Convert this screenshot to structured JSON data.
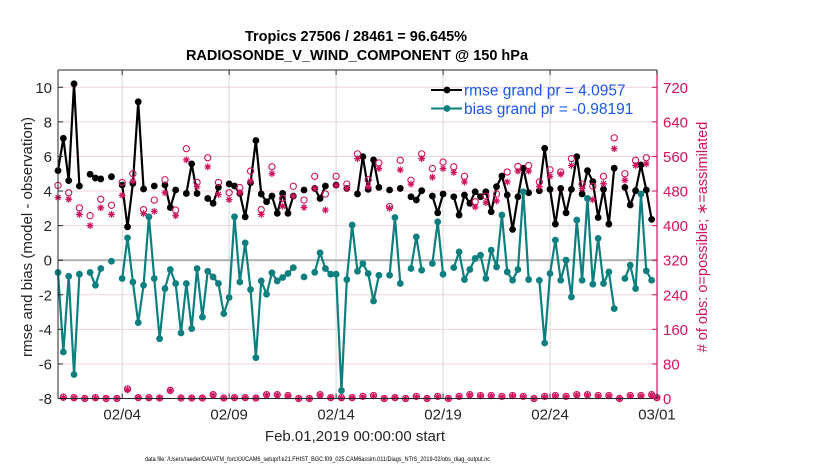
{
  "chart_data": {
    "type": "line",
    "title": "Tropics 27506 / 28461 = 96.645%",
    "subtitle": "RADIOSONDE_V_WIND_COMPONENT @ 150 hPa",
    "xlabel": "Feb.01,2019 00:00:00 start",
    "ylabel": "rmse and bias (model - observation)",
    "ylabel_right": "# of obs: o=possible; ∗=assimilated",
    "footer": "data file: /Users/raeder/DAI/ATM_forcXX/CAM6_setup/f.e21.FHIST_BGC.f09_025.CAM6assim.011/Diags_NTrS_2019-02/obs_diag_output.nc",
    "x_units": "days since Feb.01,2019 00:00:00",
    "x_start": 0,
    "x_step": 0.25,
    "xlim": [
      0,
      28
    ],
    "xticks": [
      3,
      8,
      13,
      18,
      23,
      28
    ],
    "xticklabels": [
      "02/04",
      "02/09",
      "02/14",
      "02/19",
      "02/24",
      "03/01"
    ],
    "ylim": [
      -8,
      11
    ],
    "yticks": [
      -8,
      -6,
      -4,
      -2,
      0,
      2,
      4,
      6,
      8,
      10
    ],
    "ylim_right": [
      0,
      760
    ],
    "yticks_right": [
      0,
      80,
      160,
      240,
      320,
      400,
      480,
      560,
      640,
      720
    ],
    "grid": true,
    "zero_line": 0,
    "colors": {
      "rmse": "#000000",
      "bias": "#0e7f7f",
      "counts": "#d0135f",
      "legend_text": "#1b57ee",
      "grid_h": "#f1d3de",
      "grid_v": "#d9d9d9",
      "zero_line": "#b4b4b4"
    },
    "legend": {
      "position": "top-right",
      "entries": [
        {
          "label": "rmse grand pr = 4.0957",
          "color": "#000000"
        },
        {
          "label": "bias grand pr = -0.98191",
          "color": "#0e7f7f"
        }
      ]
    },
    "series": [
      {
        "name": "rmse",
        "axis": "left",
        "style": "line",
        "color": "#000000",
        "values": [
          5.18,
          7.05,
          4.6,
          10.2,
          4.29,
          null,
          4.97,
          4.75,
          4.7,
          null,
          4.83,
          null,
          4.35,
          1.93,
          4.44,
          9.16,
          4.12,
          null,
          4.29,
          null,
          4.35,
          3.05,
          4.06,
          null,
          3.86,
          5.57,
          3.86,
          null,
          3.57,
          3.29,
          4.21,
          null,
          4.41,
          4.29,
          3.86,
          2.51,
          4.48,
          6.92,
          3.83,
          3.38,
          3.71,
          2.71,
          3.86,
          2.71,
          3.71,
          null,
          4.06,
          null,
          4.15,
          3.57,
          4.29,
          null,
          4.35,
          null,
          4.15,
          null,
          3.83,
          5.99,
          4.1,
          5.8,
          4.21,
          null,
          4.06,
          null,
          4.15,
          null,
          3.67,
          3.48,
          4.02,
          null,
          3.71,
          2.74,
          3.83,
          null,
          3.67,
          2.61,
          3.77,
          3.29,
          3.96,
          3.67,
          3.96,
          2.8,
          4.25,
          4.87,
          3.77,
          1.78,
          3.67,
          5.32,
          3.9,
          null,
          4.02,
          6.47,
          4.1,
          2.09,
          4.15,
          2.74,
          4.1,
          5.99,
          3.83,
          5.18,
          4.54,
          2.47,
          4.1,
          2.09,
          5.32,
          null,
          4.21,
          3.19,
          4.02,
          5.51,
          4.06,
          2.36,
          null
        ]
      },
      {
        "name": "bias",
        "axis": "left",
        "style": "line",
        "color": "#0e7f7f",
        "values": [
          -0.71,
          -5.31,
          -0.93,
          -6.61,
          -0.81,
          null,
          -0.71,
          -1.45,
          -0.48,
          null,
          -0.06,
          null,
          -1.06,
          1.29,
          -1.26,
          -3.61,
          -1.45,
          2.51,
          -1.06,
          -4.54,
          -1.64,
          -0.54,
          -1.35,
          -4.21,
          -1.35,
          -3.96,
          -0.48,
          -3.29,
          -0.64,
          -0.97,
          -1.35,
          -3.09,
          -2.16,
          2.51,
          -1.26,
          1.0,
          -1.7,
          -5.64,
          -1.2,
          -1.97,
          -0.73,
          -1.2,
          -1.0,
          -0.77,
          -0.43,
          null,
          -0.97,
          null,
          -0.7,
          0.43,
          -0.48,
          -0.81,
          -0.81,
          -7.54,
          -1.12,
          2.03,
          -0.64,
          -0.19,
          -0.77,
          -2.36,
          -0.87,
          null,
          -0.87,
          2.47,
          -1.35,
          null,
          -0.48,
          1.35,
          -0.58,
          null,
          -0.19,
          2.22,
          -0.81,
          null,
          -0.43,
          0.48,
          -1.12,
          -0.54,
          0.1,
          0.29,
          -1.06,
          0.58,
          -0.39,
          2.61,
          -0.68,
          -1.16,
          -0.54,
          3.96,
          -1.12,
          null,
          -1.16,
          -4.79,
          -0.77,
          1.16,
          -1.16,
          0.0,
          -2.13,
          2.32,
          -1.16,
          3.57,
          -1.39,
          1.26,
          -1.35,
          -0.68,
          -2.8,
          null,
          -1.06,
          -0.29,
          -1.64,
          3.83,
          -0.62,
          -1.16,
          null
        ]
      },
      {
        "name": "obs possible",
        "axis": "right",
        "style": "markers",
        "marker": "circle",
        "color": "#d0135f",
        "values": [
          493,
          3,
          476,
          2,
          441,
          0,
          423,
          2,
          461,
          0,
          447,
          0,
          500,
          22,
          520,
          2,
          437,
          2,
          459,
          1,
          506,
          19,
          436,
          1,
          578,
          1,
          500,
          1,
          557,
          9,
          500,
          1,
          476,
          2,
          488,
          2,
          526,
          1,
          437,
          9,
          536,
          9,
          463,
          7,
          491,
          0,
          459,
          0,
          514,
          9,
          473,
          2,
          514,
          2,
          496,
          2,
          566,
          5,
          506,
          7,
          545,
          0,
          444,
          2,
          551,
          0,
          505,
          5,
          566,
          0,
          532,
          5,
          547,
          0,
          536,
          5,
          514,
          9,
          455,
          7,
          468,
          7,
          473,
          5,
          524,
          7,
          537,
          5,
          539,
          0,
          501,
          5,
          529,
          7,
          524,
          5,
          555,
          9,
          496,
          9,
          491,
          7,
          514,
          7,
          603,
          0,
          520,
          7,
          551,
          7,
          557,
          9,
          2
        ]
      },
      {
        "name": "obs assimilated",
        "axis": "right",
        "style": "markers",
        "marker": "asterisk",
        "color": "#d0135f",
        "values": [
          465,
          2,
          461,
          1,
          426,
          0,
          400,
          1,
          441,
          0,
          426,
          0,
          470,
          20,
          503,
          2,
          428,
          1,
          433,
          1,
          476,
          18,
          423,
          1,
          552,
          1,
          490,
          1,
          536,
          8,
          472,
          1,
          460,
          2,
          476,
          2,
          503,
          1,
          426,
          8,
          520,
          8,
          445,
          6,
          468,
          0,
          442,
          0,
          486,
          8,
          436,
          2,
          493,
          1,
          486,
          2,
          555,
          4,
          490,
          6,
          532,
          0,
          440,
          2,
          529,
          0,
          496,
          4,
          555,
          0,
          512,
          4,
          532,
          0,
          523,
          4,
          501,
          8,
          443,
          6,
          453,
          6,
          457,
          4,
          501,
          6,
          526,
          4,
          526,
          0,
          490,
          4,
          514,
          6,
          519,
          4,
          539,
          8,
          486,
          8,
          460,
          6,
          497,
          6,
          578,
          0,
          505,
          6,
          539,
          6,
          543,
          8,
          2
        ]
      }
    ]
  }
}
